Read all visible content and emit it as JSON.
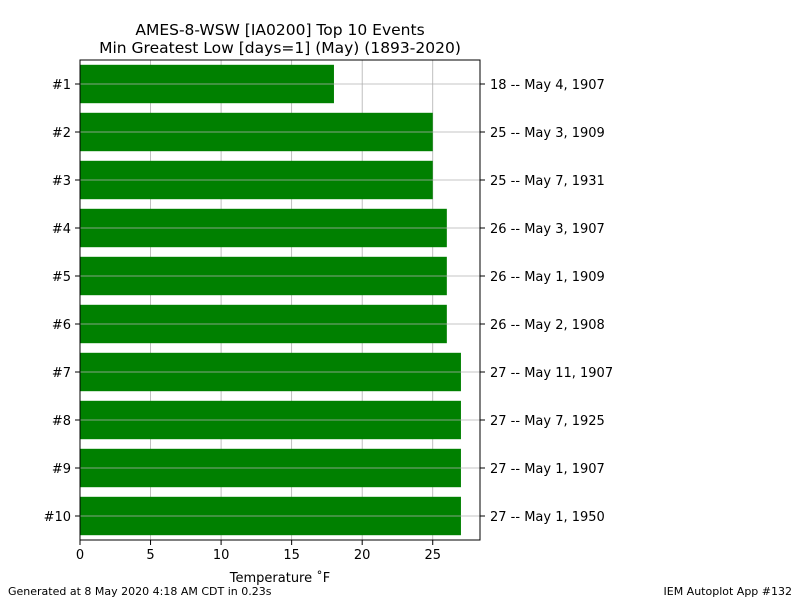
{
  "footer": {
    "generated": "Generated at 8 May 2020 4:18 AM CDT in 0.23s",
    "app": "IEM Autoplot App #132"
  },
  "chart_data": {
    "type": "bar",
    "orientation": "horizontal",
    "title": "AMES-8-WSW [IA0200] Top 10 Events",
    "subtitle": "Min Greatest Low [days=1] (May) (1893-2020)",
    "xlabel": "Temperature ˚F",
    "ylabel": "",
    "xlim": [
      0,
      28.35
    ],
    "xticks": [
      0,
      5,
      10,
      15,
      20,
      25
    ],
    "grid": true,
    "bar_color": "#008000",
    "categories": [
      "#1",
      "#2",
      "#3",
      "#4",
      "#5",
      "#6",
      "#7",
      "#8",
      "#9",
      "#10"
    ],
    "values": [
      18,
      25,
      25,
      26,
      26,
      26,
      27,
      27,
      27,
      27
    ],
    "right_labels": [
      "18 -- May 4, 1907",
      "25 -- May 3, 1909",
      "25 -- May 7, 1931",
      "26 -- May 3, 1907",
      "26 -- May 1, 1909",
      "26 -- May 2, 1908",
      "27 -- May 11, 1907",
      "27 -- May 7, 1925",
      "27 -- May 1, 1907",
      "27 -- May 1, 1950"
    ]
  }
}
